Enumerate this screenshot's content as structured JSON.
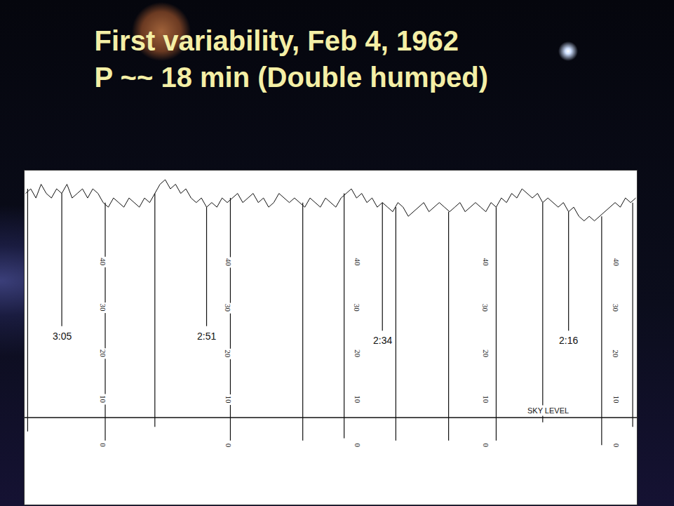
{
  "chart_data": {
    "type": "line",
    "title": "First variability, Feb 4, 1962",
    "subtitle": "P ~~ 18 min (Double humped)",
    "x": [
      68.5,
      68,
      67.5,
      67,
      66.5,
      66,
      65.5,
      65,
      64.5,
      64,
      63.5,
      63,
      62.5,
      62,
      61.5,
      61,
      60.5,
      60,
      59.5,
      59,
      58.5,
      58,
      57.5,
      57,
      56.5,
      56,
      55.5,
      55,
      54.5,
      54,
      53.5,
      53,
      52.5,
      52,
      51.5,
      51,
      50.5,
      50,
      49.5,
      49,
      48.5,
      48,
      47.5,
      47,
      46.5,
      46,
      45.5,
      45,
      44.5,
      44,
      43.5,
      43,
      42.5,
      42,
      41.5,
      41,
      40.5,
      40,
      39.5,
      39,
      38.5,
      38,
      37.5,
      37,
      36.5,
      36,
      35.5,
      35,
      34.5,
      34,
      33.5,
      33,
      32.5,
      32,
      31.5,
      31,
      30.5,
      30,
      29.5,
      29,
      28.5,
      28,
      27.5,
      27,
      26.5,
      26,
      25.5,
      25,
      24.5,
      24,
      23.5,
      23,
      22.5,
      22,
      21.5,
      21,
      20.5,
      20,
      19.5,
      19,
      18.5,
      18,
      17.5,
      17,
      16.5,
      16,
      15.5,
      15,
      14.5,
      14,
      13.5,
      13,
      12.5,
      12,
      11.5,
      11,
      10.5,
      10,
      9.5
    ],
    "values": [
      55,
      56,
      54,
      57,
      55,
      54,
      56,
      55,
      57,
      54,
      55,
      56,
      54,
      56,
      55,
      53,
      52,
      54,
      53,
      52,
      54,
      53,
      52,
      54,
      53,
      55,
      57,
      58,
      56,
      57,
      55,
      56,
      54,
      53,
      54,
      52,
      53,
      52,
      54,
      53,
      54,
      55,
      53,
      54,
      55,
      53,
      54,
      52,
      53,
      55,
      54,
      53,
      54,
      53,
      52,
      54,
      53,
      52,
      54,
      53,
      52,
      54,
      55,
      56,
      54,
      55,
      53,
      54,
      52,
      53,
      52,
      51,
      53,
      52,
      50,
      51,
      52,
      53,
      51,
      52,
      53,
      52,
      51,
      52,
      53,
      51,
      52,
      53,
      52,
      51,
      53,
      52,
      54,
      53,
      55,
      54,
      56,
      55,
      54,
      55,
      53,
      54,
      53,
      52,
      53,
      51,
      52,
      50,
      49,
      50,
      49,
      50,
      51,
      52,
      53,
      52,
      54,
      53,
      54
    ],
    "color": "#111111",
    "xlim": [
      68.6,
      9.4
    ],
    "ylim": [
      -13,
      60
    ],
    "yticks": [
      0,
      10,
      20,
      30,
      40
    ],
    "tick_labels": false,
    "grid": false,
    "scale_x": [
      61.0,
      48.9,
      36.4,
      24.0,
      11.4
    ],
    "drops": [
      {
        "x": 68.3,
        "from": 56,
        "to": 3
      },
      {
        "x": 60.8,
        "from": 53,
        "to": 1
      },
      {
        "x": 56.0,
        "from": 55,
        "to": 4
      },
      {
        "x": 48.7,
        "from": 54,
        "to": 1
      },
      {
        "x": 41.7,
        "from": 53,
        "to": 1
      },
      {
        "x": 37.7,
        "from": 55,
        "to": 1.5
      },
      {
        "x": 32.7,
        "from": 52,
        "to": 1
      },
      {
        "x": 27.6,
        "from": 51,
        "to": 1
      },
      {
        "x": 23.0,
        "from": 52,
        "to": 1
      },
      {
        "x": 18.5,
        "from": 53,
        "to": 5
      },
      {
        "x": 12.8,
        "from": 50,
        "to": 0
      },
      {
        "x": 9.8,
        "from": 53,
        "to": 4
      }
    ],
    "time_marks": [
      {
        "label": "3:05",
        "x": 65,
        "from": 55,
        "to": 26
      },
      {
        "label": "2:51",
        "x": 51,
        "from": 52,
        "to": 26
      },
      {
        "label": "2:34",
        "x": 34,
        "from": 53,
        "to": 25
      },
      {
        "label": "2:16",
        "x": 16,
        "from": 51,
        "to": 25
      }
    ],
    "sky_level": {
      "label": "SKY LEVEL",
      "value": 6,
      "x": 18
    }
  }
}
